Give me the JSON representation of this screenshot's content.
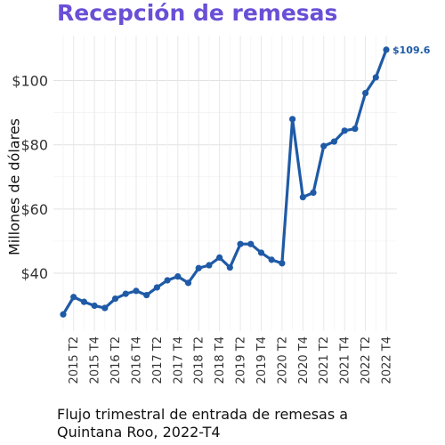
{
  "chart_data": {
    "type": "line",
    "title": "Recepción de remesas",
    "ylabel": "Millones de dólares",
    "caption_lines": [
      "Flujo trimestral de entrada de remesas a",
      "Quintana Roo, 2022-T4"
    ],
    "ylim": [
      22,
      114
    ],
    "yticks": [
      40,
      60,
      80,
      100
    ],
    "ytick_labels": [
      "$40",
      "$60",
      "$80",
      "$100"
    ],
    "x_tick_labels": [
      "2015 T2",
      "2015 T4",
      "2016 T2",
      "2016 T4",
      "2017 T2",
      "2017 T4",
      "2018 T2",
      "2018 T4",
      "2019 T2",
      "2019 T4",
      "2020 T2",
      "2020 T4",
      "2021 T2",
      "2021 T4",
      "2022 T2",
      "2022 T4"
    ],
    "grid": true,
    "line_color": "#1f5aa6",
    "title_color": "#6a4fd6",
    "series": [
      {
        "x": [
          "2015 T1",
          "2015 T2",
          "2015 T3",
          "2015 T4",
          "2016 T1",
          "2016 T2",
          "2016 T3",
          "2016 T4",
          "2017 T1",
          "2017 T2",
          "2017 T3",
          "2017 T4",
          "2018 T1",
          "2018 T2",
          "2018 T3",
          "2018 T4",
          "2019 T1",
          "2019 T2",
          "2019 T3",
          "2019 T4",
          "2020 T1",
          "2020 T2",
          "2020 T3",
          "2020 T4",
          "2021 T1",
          "2021 T2",
          "2021 T3",
          "2021 T4",
          "2022 T1",
          "2022 T2",
          "2022 T3",
          "2022 T4"
        ],
        "values": [
          27.2,
          32.6,
          31.1,
          29.9,
          29.2,
          32.1,
          33.6,
          34.5,
          33.2,
          35.6,
          37.8,
          39.0,
          37.0,
          41.6,
          42.5,
          44.9,
          41.8,
          49.1,
          49.1,
          46.4,
          44.2,
          43.1,
          88.0,
          63.7,
          65.1,
          79.6,
          81.0,
          84.4,
          85.0,
          96.1,
          101.0,
          109.6
        ]
      }
    ],
    "end_label": "$109.6"
  }
}
